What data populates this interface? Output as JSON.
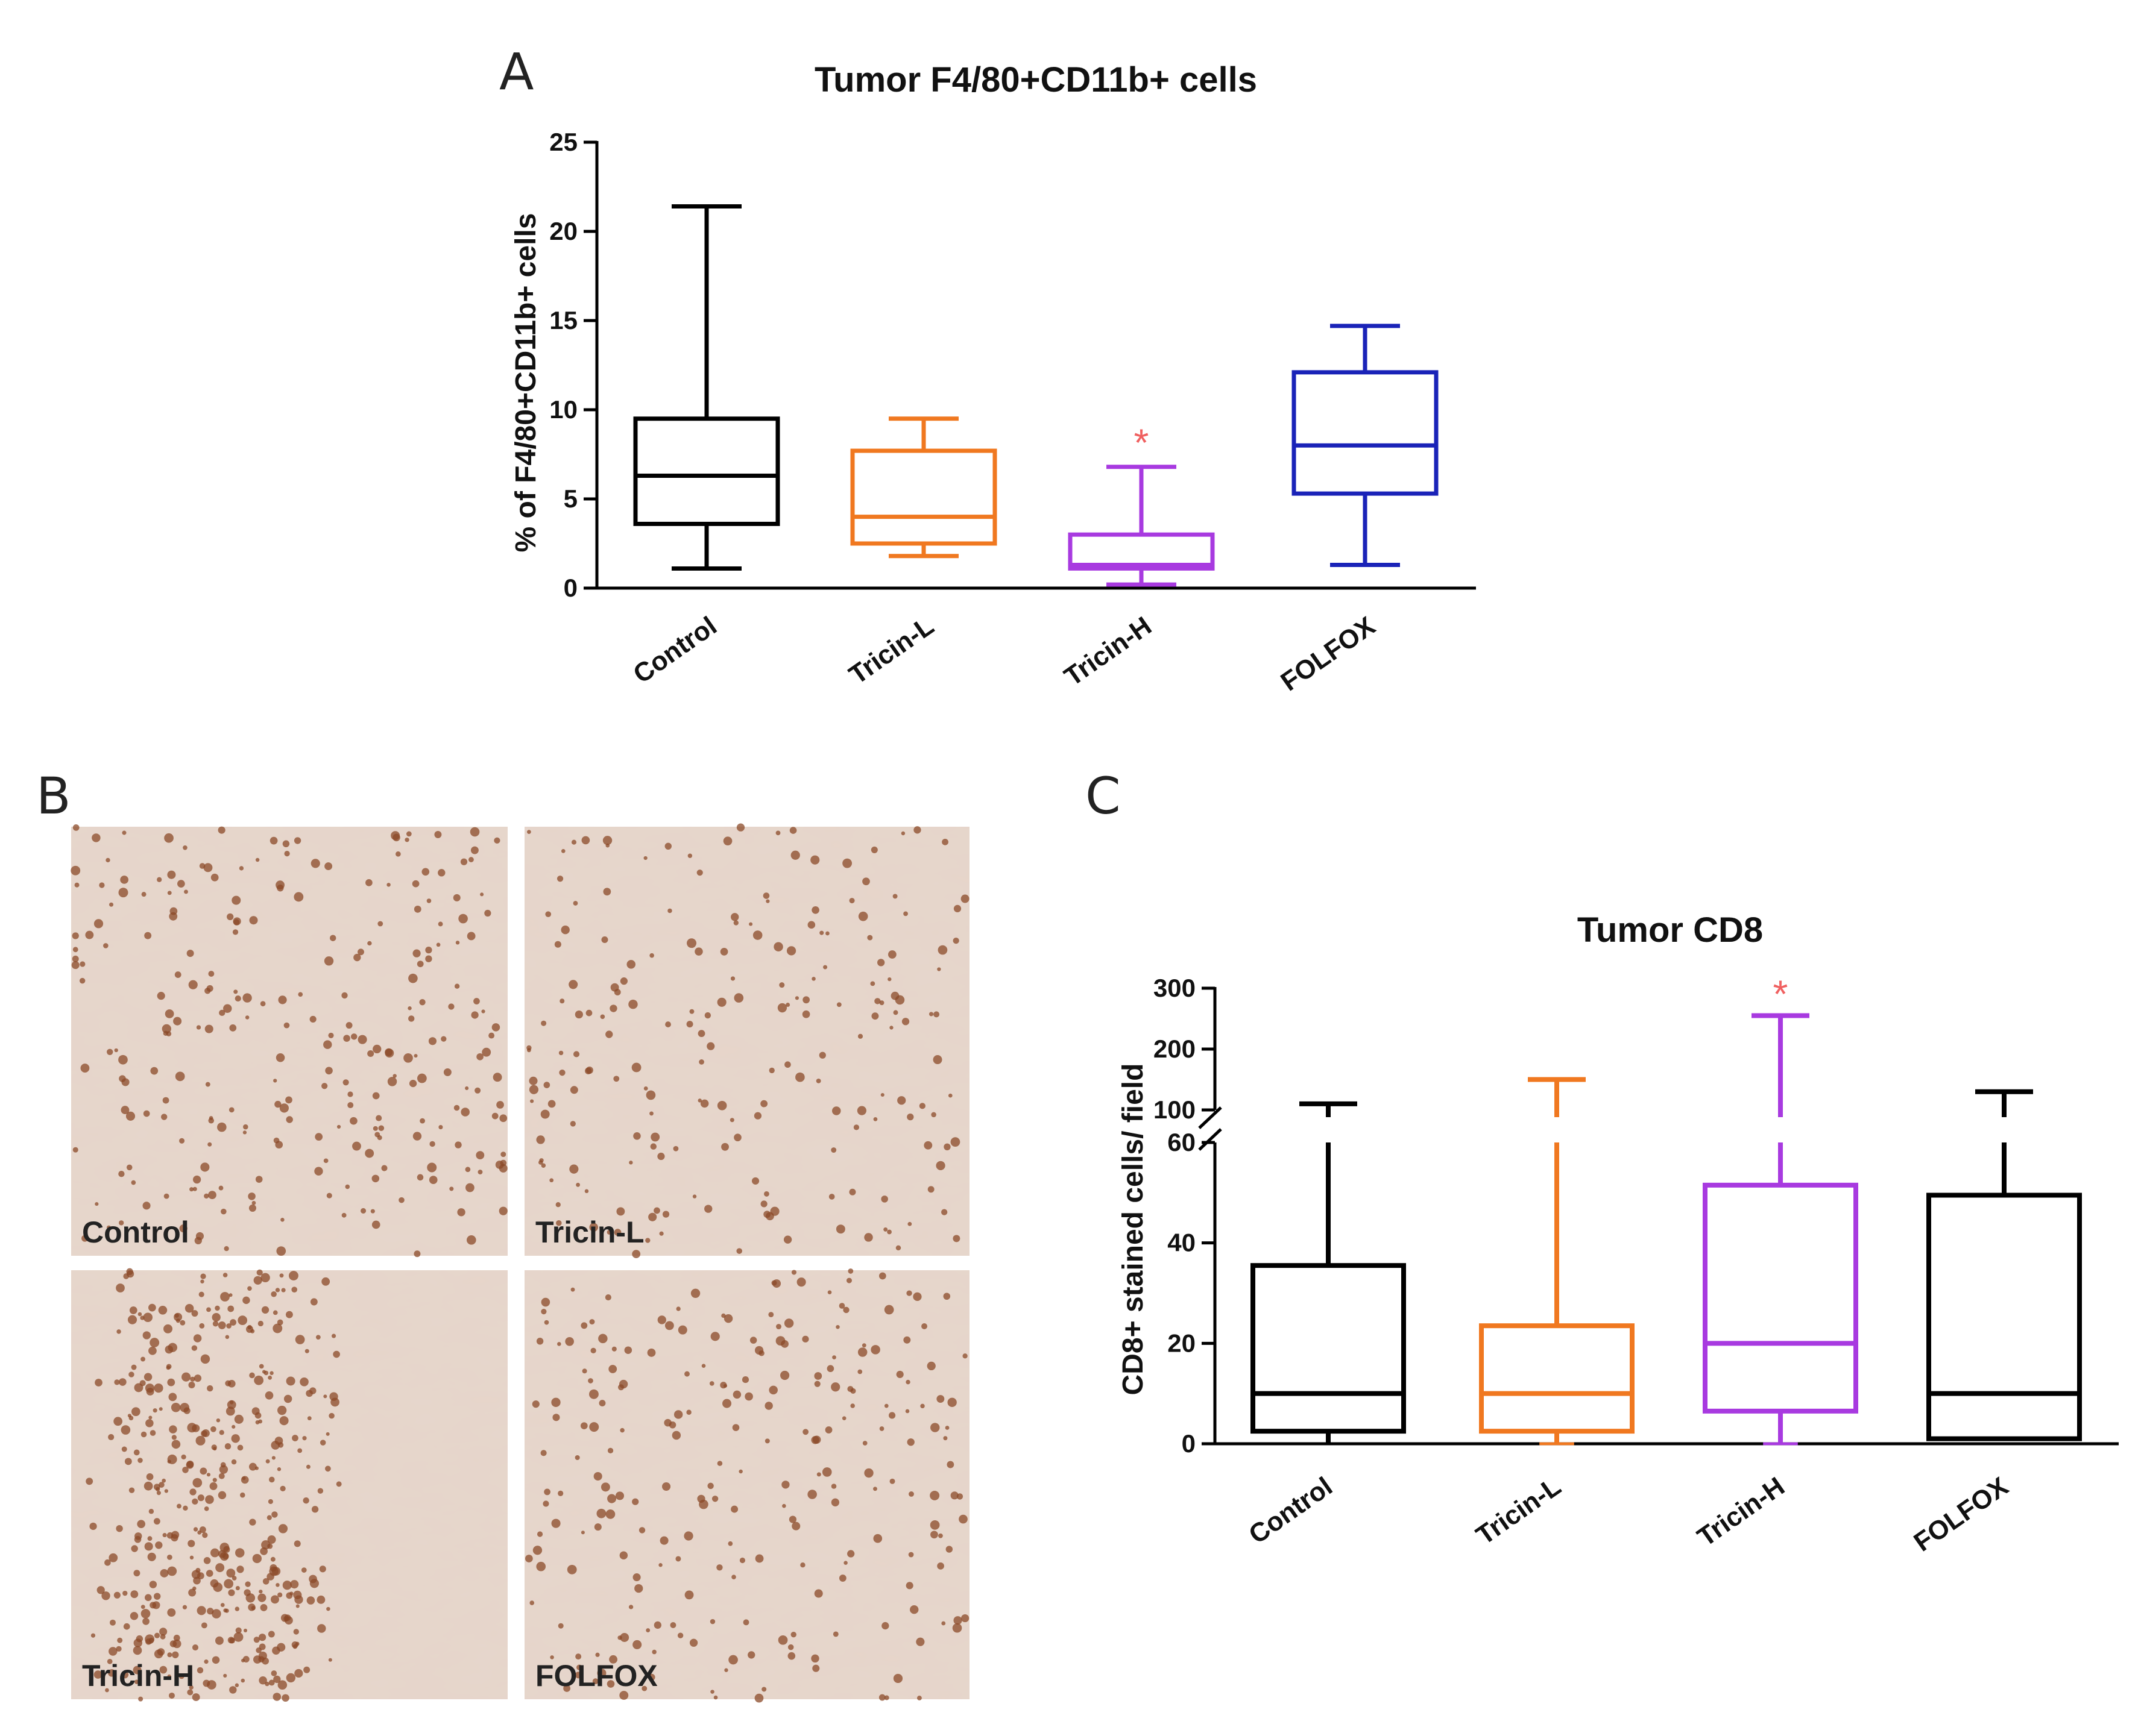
{
  "panels": {
    "a": "A",
    "b": "B",
    "c": "C"
  },
  "micrographs": {
    "labels": [
      "Control",
      "Tricin-L",
      "Tricin-H",
      "FOLFOX"
    ],
    "stain_color": "#8b4a28",
    "background_color": "#e6d6cc"
  },
  "chart_data": [
    {
      "type": "box",
      "title": "Tumor F4/80+CD11b+ cells",
      "ylabel": "% of F4/80+CD11b+ cells",
      "xlabel": "",
      "ylim": [
        0,
        25
      ],
      "yticks": [
        0,
        5,
        10,
        15,
        20,
        25
      ],
      "yticklabels": [
        "0",
        "5",
        "10",
        "15",
        "20",
        "25"
      ],
      "categories": [
        "Control",
        "Tricin-L",
        "Tricin-H",
        "FOLFOX"
      ],
      "boxes": [
        {
          "min": 1.1,
          "q1": 3.6,
          "median": 6.3,
          "q3": 9.5,
          "max": 21.4,
          "color": "#000000",
          "annotation": ""
        },
        {
          "min": 1.8,
          "q1": 2.5,
          "median": 4.0,
          "q3": 7.7,
          "max": 9.5,
          "color": "#f07820",
          "annotation": ""
        },
        {
          "min": 0.2,
          "q1": 1.1,
          "median": 1.3,
          "q3": 3.0,
          "max": 6.8,
          "color": "#a83ae0",
          "annotation": "*"
        },
        {
          "min": 1.3,
          "q1": 5.3,
          "median": 8.0,
          "q3": 12.1,
          "max": 14.7,
          "color": "#1a23b8",
          "annotation": ""
        }
      ],
      "annotation_color": "#f06060"
    },
    {
      "type": "box",
      "title": "Tumor CD8",
      "ylabel": "CD8+ stained cells/ field",
      "xlabel": "",
      "axis_break": [
        60,
        100
      ],
      "ylim_lower": [
        0,
        60
      ],
      "ylim_upper": [
        100,
        300
      ],
      "yticks": [
        0,
        20,
        40,
        60,
        100,
        200,
        300
      ],
      "yticklabels": [
        "0",
        "20",
        "40",
        "60",
        "100",
        "200",
        "300"
      ],
      "categories": [
        "Control",
        "Tricin-L",
        "Tricin-H",
        "FOLFOX"
      ],
      "boxes": [
        {
          "min": 0,
          "q1": 2.5,
          "median": 10,
          "q3": 35.5,
          "max": 110,
          "color": "#000000",
          "annotation": ""
        },
        {
          "min": 0,
          "q1": 2.5,
          "median": 10,
          "q3": 23.5,
          "max": 150,
          "color": "#f07820",
          "annotation": ""
        },
        {
          "min": 0,
          "q1": 6.5,
          "median": 20,
          "q3": 51.5,
          "max": 255,
          "color": "#a83ae0",
          "annotation": "*"
        },
        {
          "min": 1,
          "q1": 1,
          "median": 10,
          "q3": 49.5,
          "max": 130,
          "color": "#000000",
          "annotation": ""
        }
      ],
      "annotation_color": "#f06060"
    }
  ]
}
